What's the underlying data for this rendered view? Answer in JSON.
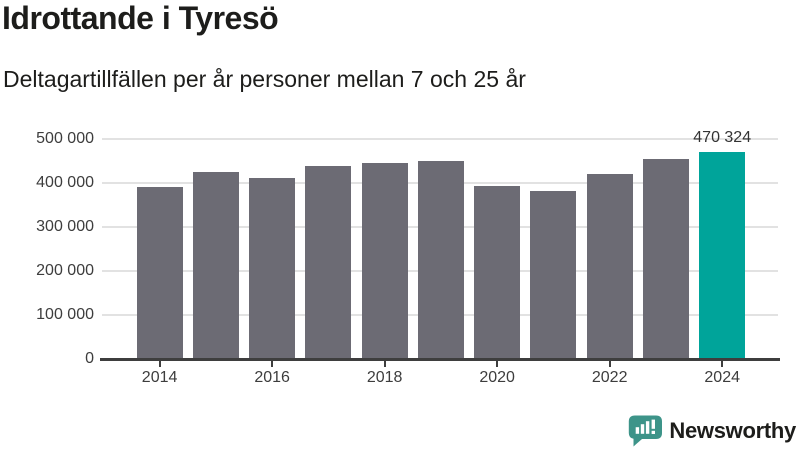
{
  "header": {
    "title": "Idrottande i Tyresö",
    "subtitle": "Deltagartillfällen per år personer mellan 7 och 25 år"
  },
  "chart_data": {
    "type": "bar",
    "title": "Idrottande i Tyresö",
    "subtitle": "Deltagartillfällen per år personer mellan 7 och 25 år",
    "xlabel": "",
    "ylabel": "",
    "categories": [
      "2014",
      "2015",
      "2016",
      "2017",
      "2018",
      "2019",
      "2020",
      "2021",
      "2022",
      "2023",
      "2024"
    ],
    "values": [
      390000,
      425000,
      411000,
      438000,
      445000,
      450000,
      393000,
      381000,
      420000,
      455000,
      470324
    ],
    "highlight_index": 10,
    "highlight_label": "470 324",
    "ylim": [
      0,
      500000
    ],
    "ytick_values": [
      0,
      100000,
      200000,
      300000,
      400000,
      500000
    ],
    "ytick_labels": [
      "0",
      "100 000",
      "200 000",
      "300 000",
      "400 000",
      "500 000"
    ],
    "xticks": [
      {
        "index": 0,
        "label": "2014"
      },
      {
        "index": 2,
        "label": "2016"
      },
      {
        "index": 4,
        "label": "2018"
      },
      {
        "index": 6,
        "label": "2020"
      },
      {
        "index": 8,
        "label": "2022"
      },
      {
        "index": 10,
        "label": "2024"
      }
    ],
    "grid": true,
    "legend": "none",
    "bar_color": "#6c6b74",
    "highlight_color": "#00a49a",
    "gridline_color": "#e2e2e2",
    "axis_color": "#3e3e3e"
  },
  "footer": {
    "brand": "Newsworthy",
    "brand_color": "#3d9489",
    "logo_icon": "bar-chart-speech-bubble-icon"
  }
}
